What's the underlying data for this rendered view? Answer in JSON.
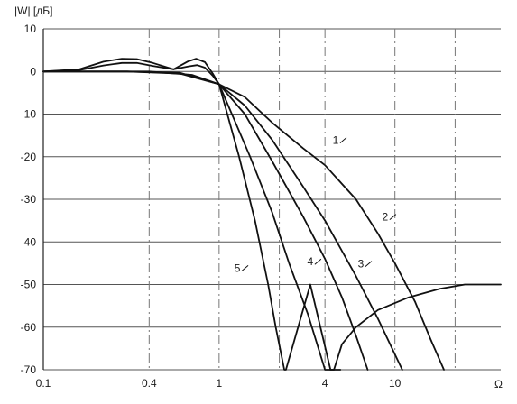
{
  "chart_data": {
    "type": "line",
    "x_scale": "log",
    "xlim": [
      0.1,
      40
    ],
    "ylim": [
      -70,
      10
    ],
    "ylabel": "|W| [дБ]",
    "xlabel": "Ω",
    "x_ticks": [
      {
        "value": 0.1,
        "label": "0.1"
      },
      {
        "value": 0.4,
        "label": "0.4"
      },
      {
        "value": 1,
        "label": "1"
      },
      {
        "value": 4,
        "label": "4"
      },
      {
        "value": 10,
        "label": "10"
      }
    ],
    "y_ticks": [
      {
        "value": 10,
        "label": "10"
      },
      {
        "value": 0,
        "label": "0"
      },
      {
        "value": -10,
        "label": "-10"
      },
      {
        "value": -20,
        "label": "-20"
      },
      {
        "value": -30,
        "label": "-30"
      },
      {
        "value": -40,
        "label": "-40"
      },
      {
        "value": -50,
        "label": "-50"
      },
      {
        "value": -60,
        "label": "-60"
      },
      {
        "value": -70,
        "label": "-70"
      }
    ],
    "grid": {
      "horizontal": "solid",
      "vertical": "dash-dot",
      "vertical_at": [
        0.1,
        0.4,
        1,
        2.2,
        4,
        10,
        22
      ]
    },
    "series": [
      {
        "label": "1",
        "label_at": [
          4.6,
          -17
        ],
        "points": [
          [
            0.1,
            0
          ],
          [
            0.2,
            0
          ],
          [
            0.4,
            0
          ],
          [
            0.7,
            -0.8
          ],
          [
            1,
            -3
          ],
          [
            1.4,
            -6
          ],
          [
            2,
            -12
          ],
          [
            3,
            -18
          ],
          [
            4,
            -22
          ],
          [
            6,
            -30
          ],
          [
            8,
            -38
          ],
          [
            10,
            -45
          ],
          [
            13,
            -54
          ],
          [
            16,
            -63
          ],
          [
            19,
            -70
          ]
        ]
      },
      {
        "label": "2",
        "label_at": [
          8.8,
          -35
        ],
        "points": [
          [
            0.1,
            0
          ],
          [
            0.16,
            0.3
          ],
          [
            0.22,
            1.4
          ],
          [
            0.28,
            2
          ],
          [
            0.34,
            2
          ],
          [
            0.42,
            1.3
          ],
          [
            0.55,
            0.5
          ],
          [
            0.67,
            1.2
          ],
          [
            0.75,
            1.5
          ],
          [
            0.83,
            0.9
          ],
          [
            0.92,
            -1
          ],
          [
            1,
            -3
          ],
          [
            1.4,
            -8
          ],
          [
            2,
            -16
          ],
          [
            3,
            -27
          ],
          [
            4,
            -35
          ],
          [
            6,
            -48
          ],
          [
            8,
            -58
          ],
          [
            11,
            -70
          ]
        ]
      },
      {
        "label": "3",
        "label_at": [
          6.4,
          -46
        ],
        "points": [
          [
            0.1,
            0
          ],
          [
            0.16,
            0.5
          ],
          [
            0.22,
            2.3
          ],
          [
            0.28,
            3
          ],
          [
            0.34,
            2.9
          ],
          [
            0.42,
            2
          ],
          [
            0.55,
            0.5
          ],
          [
            0.66,
            2.3
          ],
          [
            0.74,
            3
          ],
          [
            0.83,
            2.2
          ],
          [
            0.92,
            -0.5
          ],
          [
            1,
            -3
          ],
          [
            1.4,
            -10
          ],
          [
            2,
            -21
          ],
          [
            3,
            -34
          ],
          [
            4,
            -44
          ],
          [
            5,
            -53
          ],
          [
            6,
            -62
          ],
          [
            7,
            -70
          ]
        ]
      },
      {
        "label": "4",
        "label_at": [
          3.3,
          -45.5
        ],
        "points": [
          [
            0.1,
            0
          ],
          [
            0.3,
            0
          ],
          [
            0.6,
            -0.5
          ],
          [
            1,
            -3
          ],
          [
            1.5,
            -20
          ],
          [
            2,
            -33
          ],
          [
            2.5,
            -45
          ],
          [
            3.2,
            -57
          ],
          [
            4,
            -70
          ],
          [
            4.9,
            -70
          ]
        ]
      },
      {
        "label": "5",
        "label_at": [
          1.27,
          -47
        ],
        "points": [
          [
            0.1,
            0
          ],
          [
            0.3,
            0
          ],
          [
            0.6,
            -0.3
          ],
          [
            1,
            -3
          ],
          [
            1.3,
            -20
          ],
          [
            1.6,
            -35
          ],
          [
            1.9,
            -50
          ],
          [
            2.1,
            -60
          ],
          [
            2.35,
            -70
          ],
          [
            2.4,
            -70
          ],
          [
            3.3,
            -50
          ],
          [
            4.3,
            -70
          ],
          [
            4.5,
            -70
          ],
          [
            5,
            -64
          ],
          [
            6,
            -60
          ],
          [
            8,
            -56
          ],
          [
            12,
            -53
          ],
          [
            18,
            -51
          ],
          [
            25,
            -50
          ],
          [
            40,
            -50
          ]
        ]
      }
    ]
  }
}
